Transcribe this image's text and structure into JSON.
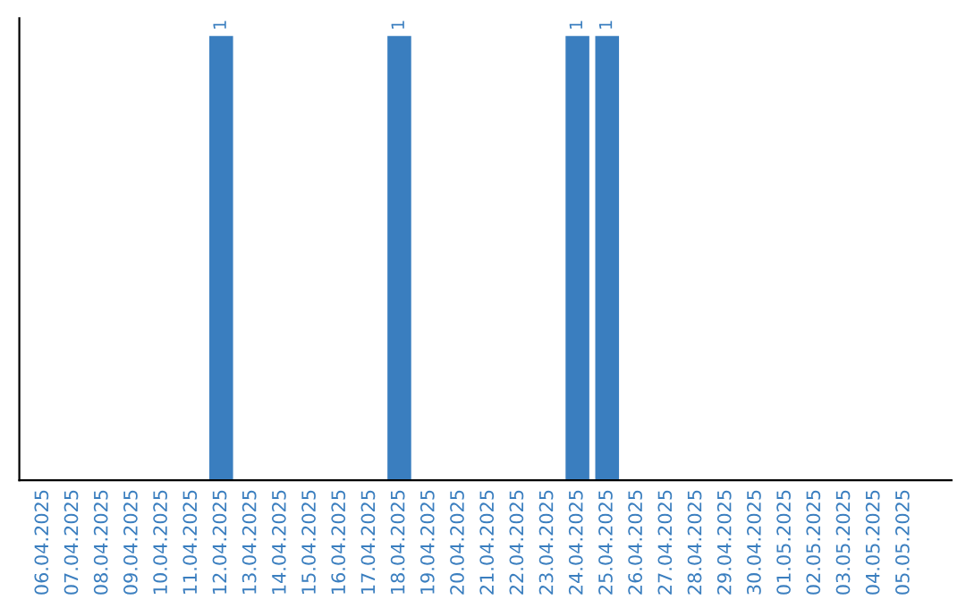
{
  "chart_data": {
    "type": "bar",
    "categories": [
      "06.04.2025",
      "07.04.2025",
      "08.04.2025",
      "09.04.2025",
      "10.04.2025",
      "11.04.2025",
      "12.04.2025",
      "13.04.2025",
      "14.04.2025",
      "15.04.2025",
      "16.04.2025",
      "17.04.2025",
      "18.04.2025",
      "19.04.2025",
      "20.04.2025",
      "21.04.2025",
      "22.04.2025",
      "23.04.2025",
      "24.04.2025",
      "25.04.2025",
      "26.04.2025",
      "27.04.2025",
      "28.04.2025",
      "29.04.2025",
      "30.04.2025",
      "01.05.2025",
      "02.05.2025",
      "03.05.2025",
      "04.05.2025",
      "05.05.2025"
    ],
    "values": [
      0,
      0,
      0,
      0,
      0,
      0,
      1,
      0,
      0,
      0,
      0,
      0,
      1,
      0,
      0,
      0,
      0,
      0,
      1,
      1,
      0,
      0,
      0,
      0,
      0,
      0,
      0,
      0,
      0,
      0
    ],
    "value_labels": [
      null,
      null,
      null,
      null,
      null,
      null,
      "1",
      null,
      null,
      null,
      null,
      null,
      "1",
      null,
      null,
      null,
      null,
      null,
      "1",
      "1",
      null,
      null,
      null,
      null,
      null,
      null,
      null,
      null,
      null,
      null
    ],
    "color": "#3a7ebf",
    "tick_labels": "x",
    "grid": false
  }
}
